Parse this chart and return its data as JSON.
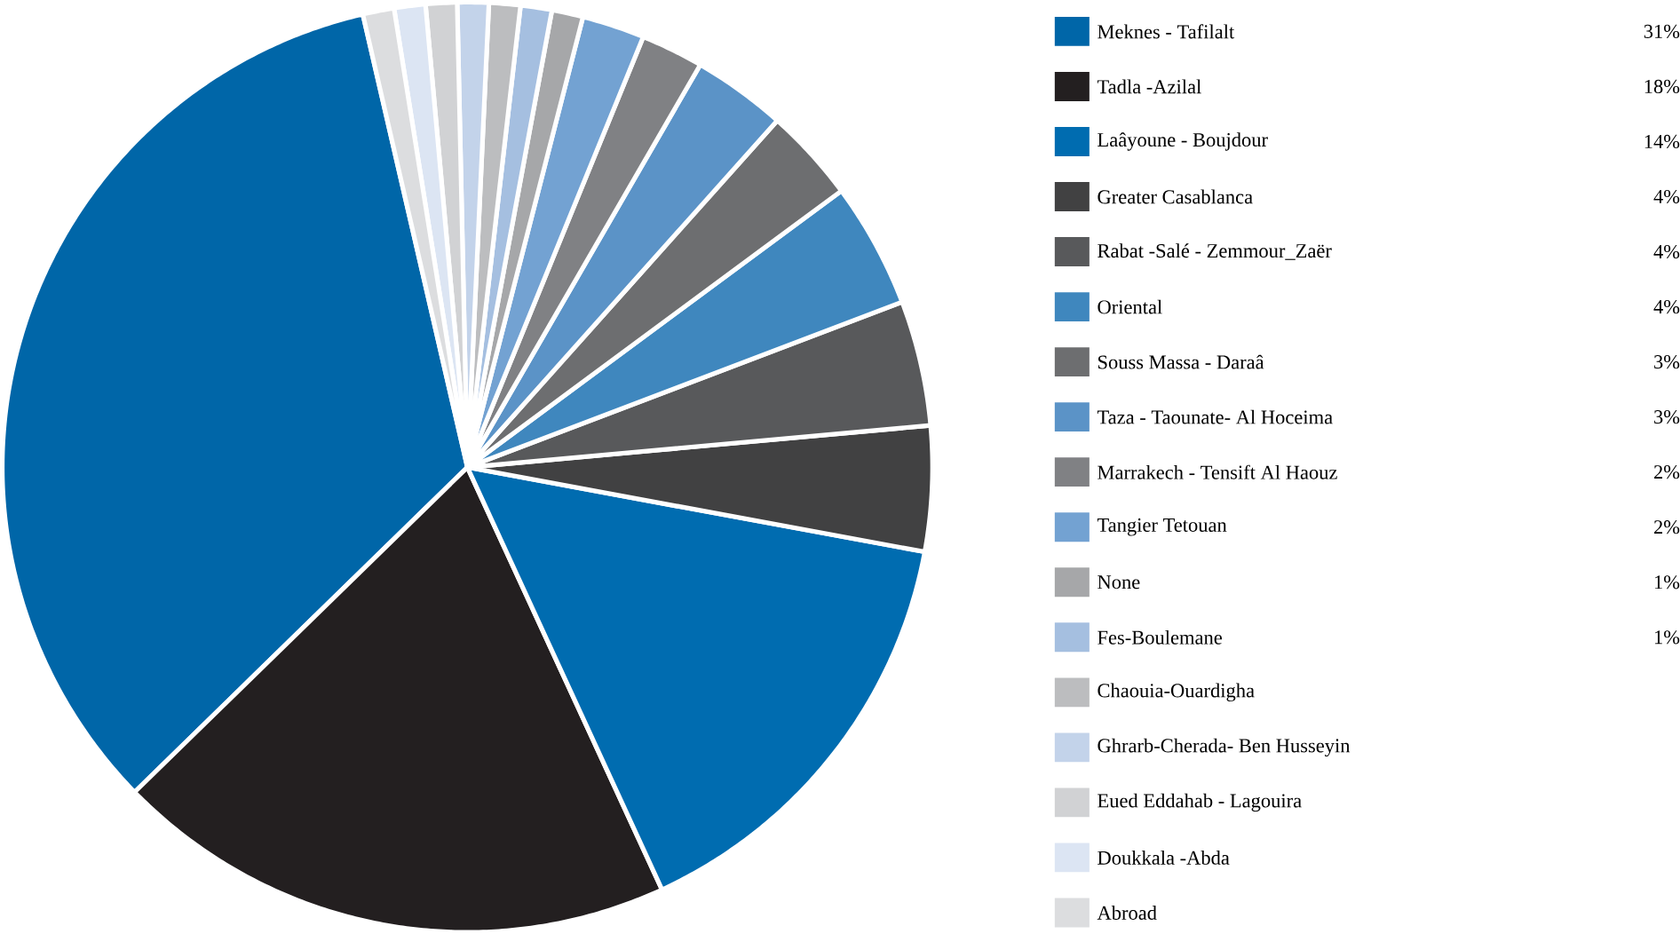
{
  "chart_data": {
    "type": "pie",
    "legend": "right",
    "categories": [
      "Meknes - Tafilalt",
      "Tadla -Azilal",
      "Laâyoune - Boujdour",
      "Greater  Casablanca",
      "Rabat -Salé -   Zemmour_Zaër",
      "Oriental",
      "Souss Massa - Daraâ",
      "Taza - Taounate- Al Hoceima",
      "Marrakech - Tensift Al Haouz",
      "Tangier   Tetouan",
      "None",
      "Fes-Boulemane",
      "Chaouia-Ouardigha",
      "Ghrarb-Cherada- Ben  Husseyin",
      "Eued  Eddahab - Lagouira",
      "Doukkala -Abda",
      "Abroad"
    ],
    "values": [
      31,
      18,
      14,
      4,
      4,
      4,
      3,
      3,
      2,
      2,
      1,
      1,
      1,
      1,
      1,
      1,
      1
    ],
    "value_labels": [
      "31%",
      "18%",
      "14%",
      "4%",
      "4%",
      "4%",
      "3%",
      "3%",
      "2%",
      "2%",
      "1%",
      "1%",
      null,
      null,
      null,
      null,
      null
    ],
    "colors": [
      "#0066a8",
      "#231f20",
      "#006cb0",
      "#414142",
      "#58595b",
      "#3f87be",
      "#6d6e70",
      "#5b93c7",
      "#808184",
      "#73a2d2",
      "#a6a7a9",
      "#a5bfe0",
      "#bcbdbf",
      "#c3d3ea",
      "#d1d2d4",
      "#dce5f3",
      "#dcdddf"
    ]
  }
}
